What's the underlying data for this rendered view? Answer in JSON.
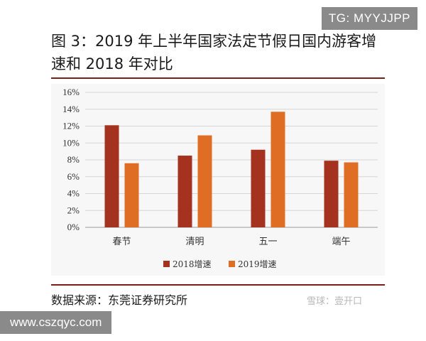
{
  "watermark": "TG: MYYJJPP",
  "site": "www.cszqyc.com",
  "source": "数据来源：东莞证券研究所",
  "xueqiu": "雪球：壹开口",
  "chart_data": {
    "type": "bar",
    "title": "图 3：2019 年上半年国家法定节假日国内游客增速和 2018 年对比",
    "categories": [
      "春节",
      "清明",
      "五一",
      "端午"
    ],
    "series": [
      {
        "name": "2018增速",
        "values": [
          12.1,
          8.5,
          9.2,
          7.9
        ],
        "color": "#a5321f"
      },
      {
        "name": "2019增速",
        "values": [
          7.6,
          10.9,
          13.7,
          7.7
        ],
        "color": "#e06d24"
      }
    ],
    "yticks": [
      "0%",
      "2%",
      "4%",
      "6%",
      "8%",
      "10%",
      "12%",
      "14%",
      "16%"
    ],
    "ylim": [
      0,
      16
    ],
    "xlabel": "",
    "ylabel": "",
    "grid": true,
    "legend": "bottom-center"
  }
}
